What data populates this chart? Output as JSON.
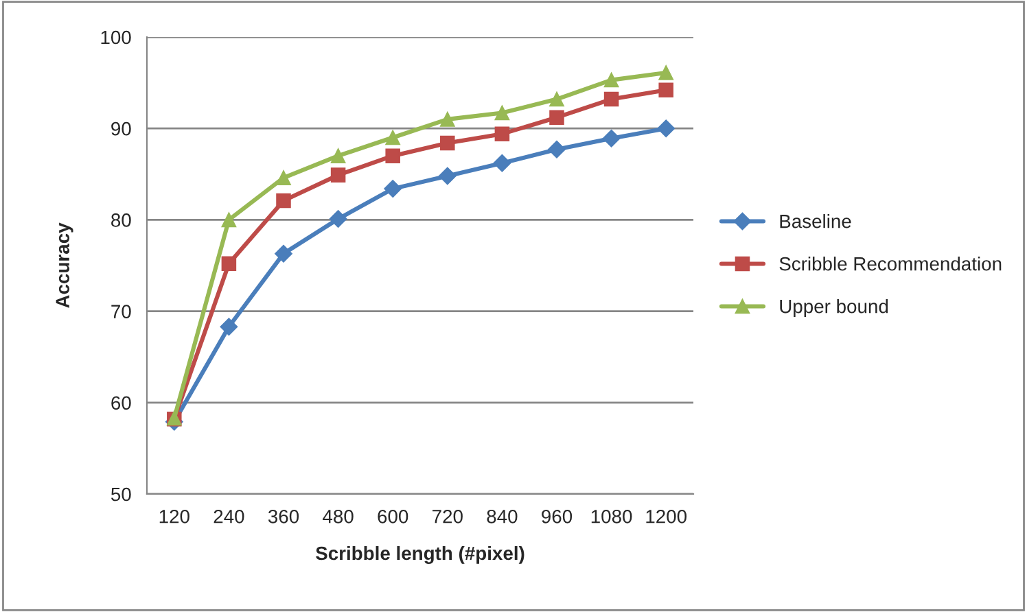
{
  "chart_data": {
    "type": "line",
    "xlabel": "Scribble length (#pixel)",
    "ylabel": "Accuracy",
    "categories": [
      "120",
      "240",
      "360",
      "480",
      "600",
      "720",
      "840",
      "960",
      "1080",
      "1200"
    ],
    "series": [
      {
        "name": "Baseline",
        "color": "#4a7ebb",
        "marker": "diamond",
        "values": [
          57.9,
          68.3,
          76.3,
          80.1,
          83.4,
          84.8,
          86.2,
          87.7,
          88.9,
          90.0
        ]
      },
      {
        "name": "Scribble Recommendation",
        "color": "#be4b48",
        "marker": "square",
        "values": [
          58.2,
          75.2,
          82.1,
          84.9,
          87.0,
          88.4,
          89.4,
          91.2,
          93.2,
          94.2
        ]
      },
      {
        "name": "Upper bound",
        "color": "#98b954",
        "marker": "triangle",
        "values": [
          58.3,
          80.0,
          84.6,
          87.0,
          89.0,
          91.0,
          91.7,
          93.2,
          95.3,
          96.1
        ]
      }
    ],
    "ylim": [
      50,
      100
    ],
    "yticks": [
      50,
      60,
      70,
      80,
      90,
      100
    ],
    "grid": "y",
    "legend": "right",
    "line_style": "solid"
  }
}
